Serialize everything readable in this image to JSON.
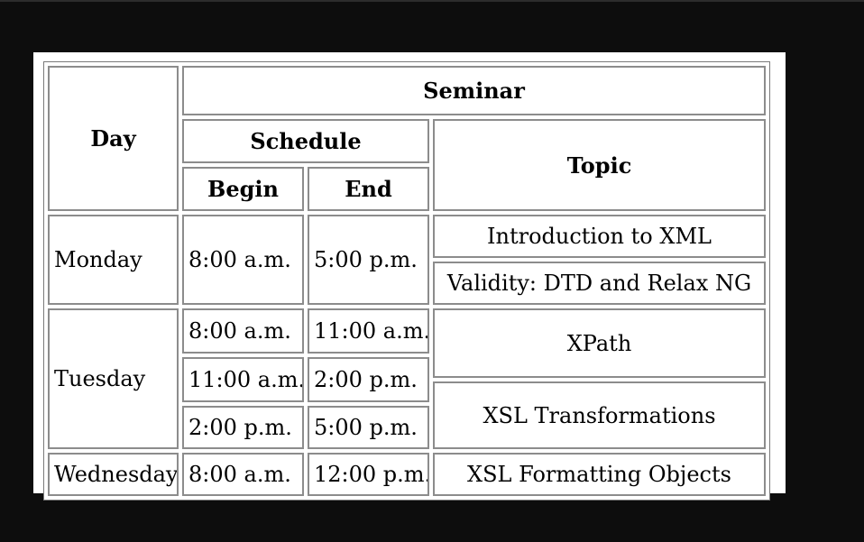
{
  "table": {
    "headers": {
      "day": "Day",
      "seminar": "Seminar",
      "schedule": "Schedule",
      "topic": "Topic",
      "begin": "Begin",
      "end": "End"
    },
    "rows": [
      {
        "day": "Monday",
        "begin": "8:00 a.m.",
        "end": "5:00 p.m."
      },
      {
        "begin": "8:00 a.m.",
        "end": "11:00 a.m."
      },
      {
        "day": "Tuesday",
        "begin": "11:00 a.m.",
        "end": "2:00 p.m."
      },
      {
        "begin": "2:00 p.m.",
        "end": "5:00 p.m."
      },
      {
        "day": "Wednesday",
        "begin": "8:00 a.m.",
        "end": "12:00 p.m."
      }
    ],
    "topics": [
      "Introduction to XML",
      "Validity: DTD and Relax NG",
      "XPath",
      "XSL Transformations",
      "XSL Formatting Objects"
    ]
  }
}
